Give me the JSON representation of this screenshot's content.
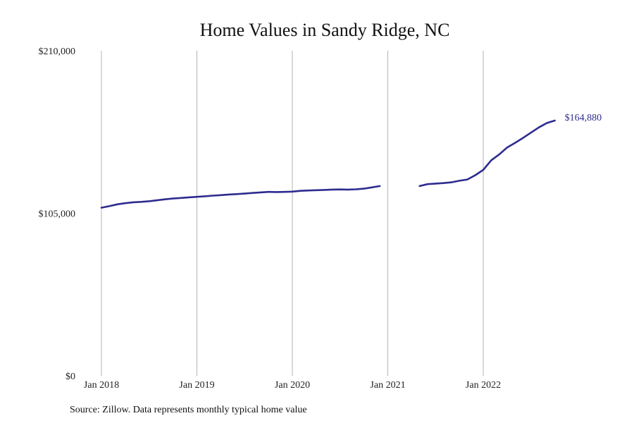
{
  "chart_data": {
    "type": "line",
    "title": "Home Values in Sandy Ridge, NC",
    "xlabel": "",
    "ylabel": "",
    "ylim": [
      0,
      210000
    ],
    "y_ticks": [
      {
        "value": 0,
        "label": "$0"
      },
      {
        "value": 105000,
        "label": "$105,000"
      },
      {
        "value": 210000,
        "label": "$210,000"
      }
    ],
    "x_range": [
      "2018-01",
      "2022-09"
    ],
    "x_ticks": [
      {
        "date": "2018-01",
        "label": "Jan 2018"
      },
      {
        "date": "2019-01",
        "label": "Jan 2019"
      },
      {
        "date": "2020-01",
        "label": "Jan 2020"
      },
      {
        "date": "2021-01",
        "label": "Jan 2021"
      },
      {
        "date": "2022-01",
        "label": "Jan 2022"
      }
    ],
    "grid": {
      "vertical": true,
      "horizontal": false
    },
    "legend": "none",
    "end_label": "$164,880",
    "series": [
      {
        "color": "#2e2c8f",
        "points": [
          {
            "date": "2018-01",
            "value": 108600
          },
          {
            "date": "2018-02",
            "value": 109600
          },
          {
            "date": "2018-03",
            "value": 110800
          },
          {
            "date": "2018-04",
            "value": 111500
          },
          {
            "date": "2018-05",
            "value": 112100
          },
          {
            "date": "2018-06",
            "value": 112400
          },
          {
            "date": "2018-07",
            "value": 112800
          },
          {
            "date": "2018-08",
            "value": 113400
          },
          {
            "date": "2018-09",
            "value": 114000
          },
          {
            "date": "2018-10",
            "value": 114500
          },
          {
            "date": "2018-11",
            "value": 114900
          },
          {
            "date": "2018-12",
            "value": 115300
          },
          {
            "date": "2019-01",
            "value": 115600
          },
          {
            "date": "2019-02",
            "value": 116000
          },
          {
            "date": "2019-03",
            "value": 116400
          },
          {
            "date": "2019-04",
            "value": 116700
          },
          {
            "date": "2019-05",
            "value": 117100
          },
          {
            "date": "2019-06",
            "value": 117400
          },
          {
            "date": "2019-07",
            "value": 117700
          },
          {
            "date": "2019-08",
            "value": 118100
          },
          {
            "date": "2019-09",
            "value": 118500
          },
          {
            "date": "2019-10",
            "value": 118800
          },
          {
            "date": "2019-11",
            "value": 118700
          },
          {
            "date": "2019-12",
            "value": 118800
          },
          {
            "date": "2020-01",
            "value": 119000
          },
          {
            "date": "2020-02",
            "value": 119500
          },
          {
            "date": "2020-03",
            "value": 119700
          },
          {
            "date": "2020-04",
            "value": 119900
          },
          {
            "date": "2020-05",
            "value": 120100
          },
          {
            "date": "2020-06",
            "value": 120300
          },
          {
            "date": "2020-07",
            "value": 120400
          },
          {
            "date": "2020-08",
            "value": 120300
          },
          {
            "date": "2020-09",
            "value": 120500
          },
          {
            "date": "2020-10",
            "value": 120900
          },
          {
            "date": "2020-11",
            "value": 121700
          },
          {
            "date": "2020-12",
            "value": 122600
          },
          {
            "date": "2021-01",
            "value": null
          },
          {
            "date": "2021-02",
            "value": null
          },
          {
            "date": "2021-03",
            "value": null
          },
          {
            "date": "2021-04",
            "value": null
          },
          {
            "date": "2021-05",
            "value": 122600
          },
          {
            "date": "2021-06",
            "value": 123800
          },
          {
            "date": "2021-07",
            "value": 124200
          },
          {
            "date": "2021-08",
            "value": 124500
          },
          {
            "date": "2021-09",
            "value": 125000
          },
          {
            "date": "2021-10",
            "value": 126000
          },
          {
            "date": "2021-11",
            "value": 126800
          },
          {
            "date": "2021-12",
            "value": 129600
          },
          {
            "date": "2022-01",
            "value": 133000
          },
          {
            "date": "2022-02",
            "value": 139200
          },
          {
            "date": "2022-03",
            "value": 143000
          },
          {
            "date": "2022-04",
            "value": 147500
          },
          {
            "date": "2022-05",
            "value": 150500
          },
          {
            "date": "2022-06",
            "value": 153700
          },
          {
            "date": "2022-07",
            "value": 157100
          },
          {
            "date": "2022-08",
            "value": 160500
          },
          {
            "date": "2022-09",
            "value": 163300
          },
          {
            "date": "2022-10",
            "value": 164880
          }
        ]
      }
    ]
  },
  "footer": {
    "source": "Source: Zillow. Data represents monthly typical home value"
  }
}
